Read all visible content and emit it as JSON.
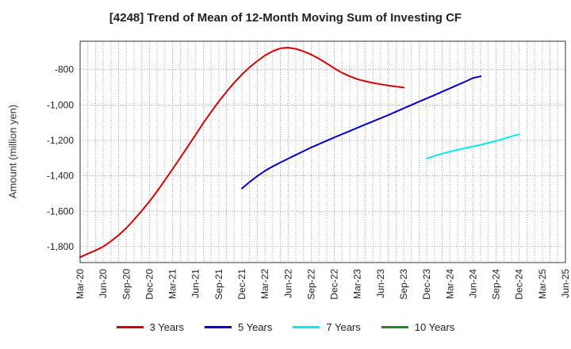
{
  "chart_data": {
    "type": "line",
    "title": "[4248]  Trend of Mean of 12-Month Moving Sum of Investing CF",
    "ylabel": "Amount (million yen)",
    "xlabel": "",
    "ylim": [
      -1890,
      -640
    ],
    "yticks": [
      -800,
      -1000,
      -1200,
      -1400,
      -1600,
      -1800
    ],
    "ytick_labels": [
      "-800",
      "-1,000",
      "-1,200",
      "-1,400",
      "-1,600",
      "-1,800"
    ],
    "x_labels": [
      "Mar-20",
      "Jun-20",
      "Sep-20",
      "Dec-20",
      "Mar-21",
      "Jun-21",
      "Sep-21",
      "Dec-21",
      "Mar-22",
      "Jun-22",
      "Sep-22",
      "Dec-22",
      "Mar-23",
      "Jun-23",
      "Sep-23",
      "Dec-23",
      "Mar-24",
      "Jun-24",
      "Sep-24",
      "Dec-24",
      "Mar-25",
      "Jun-25"
    ],
    "grid": true,
    "legend_position": "bottom",
    "series": [
      {
        "name": "3 Years",
        "color": "#dd0000",
        "start_index": 0,
        "values": [
          -1860,
          -1840,
          -1822,
          -1800,
          -1770,
          -1735,
          -1695,
          -1648,
          -1598,
          -1545,
          -1487,
          -1425,
          -1362,
          -1298,
          -1233,
          -1168,
          -1102,
          -1040,
          -980,
          -925,
          -874,
          -828,
          -787,
          -752,
          -720,
          -696,
          -680,
          -676,
          -683,
          -697,
          -715,
          -738,
          -765,
          -793,
          -818,
          -838,
          -854,
          -866,
          -875,
          -883,
          -890,
          -896,
          -901
        ]
      },
      {
        "name": "5 Years",
        "color": "#0000cc",
        "start_index": 21,
        "values": [
          -1472,
          -1435,
          -1402,
          -1372,
          -1347,
          -1325,
          -1303,
          -1282,
          -1261,
          -1240,
          -1221,
          -1202,
          -1183,
          -1165,
          -1147,
          -1129,
          -1111,
          -1093,
          -1075,
          -1057,
          -1038,
          -1019,
          -1000,
          -981,
          -963,
          -944,
          -925,
          -906,
          -887,
          -868,
          -848,
          -838
        ]
      },
      {
        "name": "7 Years",
        "color": "#00eeee",
        "start_index": 45,
        "values": [
          -1302,
          -1288,
          -1275,
          -1263,
          -1253,
          -1243,
          -1234,
          -1225,
          -1214,
          -1203,
          -1190,
          -1177,
          -1165
        ]
      },
      {
        "name": "10 Years",
        "color": "#228822",
        "start_index": 0,
        "values": []
      }
    ]
  }
}
